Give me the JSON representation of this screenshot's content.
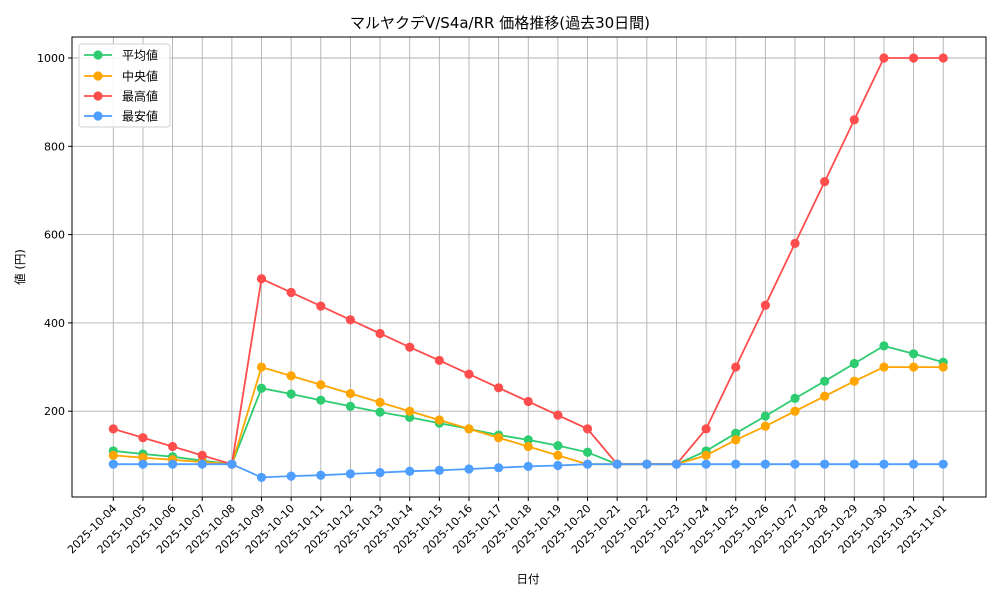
{
  "chart_data": {
    "type": "line",
    "title": "マルヤクデV/S4a/RR 価格推移(過去30日間)",
    "xlabel": "日付",
    "ylabel": "値 (円)",
    "ylim": [
      0,
      1045
    ],
    "yticks": [
      200,
      400,
      600,
      800,
      1000
    ],
    "grid": true,
    "legend_position": "upper left",
    "categories": [
      "2025-10-04",
      "2025-10-05",
      "2025-10-06",
      "2025-10-07",
      "2025-10-08",
      "2025-10-09",
      "2025-10-10",
      "2025-10-11",
      "2025-10-12",
      "2025-10-13",
      "2025-10-14",
      "2025-10-15",
      "2025-10-16",
      "2025-10-17",
      "2025-10-18",
      "2025-10-19",
      "2025-10-20",
      "2025-10-21",
      "2025-10-22",
      "2025-10-23",
      "2025-10-24",
      "2025-10-25",
      "2025-10-26",
      "2025-10-27",
      "2025-10-28",
      "2025-10-29",
      "2025-10-30",
      "2025-10-31",
      "2025-11-01"
    ],
    "series": [
      {
        "name": "平均値",
        "color": "#2ecc71",
        "values": [
          110,
          103,
          97,
          88,
          80,
          252,
          239,
          225,
          211,
          198,
          186,
          173,
          160,
          146,
          135,
          122,
          107,
          80,
          80,
          80,
          110,
          150,
          189,
          229,
          268,
          308,
          348,
          330,
          311
        ]
      },
      {
        "name": "中央値",
        "color": "#ffa500",
        "values": [
          100,
          95,
          90,
          85,
          80,
          300,
          280,
          260,
          240,
          220,
          200,
          180,
          160,
          140,
          120,
          100,
          80,
          80,
          80,
          80,
          100,
          135,
          166,
          200,
          234,
          268,
          300,
          300,
          300
        ]
      },
      {
        "name": "最高値",
        "color": "#ff4d4d",
        "values": [
          160,
          140,
          120,
          100,
          80,
          500,
          469,
          438,
          407,
          376,
          345,
          315,
          284,
          253,
          222,
          191,
          160,
          80,
          80,
          80,
          160,
          300,
          440,
          580,
          720,
          860,
          1000,
          1000,
          1000
        ]
      },
      {
        "name": "最安値",
        "color": "#4d9eff",
        "values": [
          80,
          80,
          80,
          80,
          80,
          50,
          53,
          55,
          58,
          61,
          64,
          66,
          69,
          72,
          75,
          77,
          80,
          80,
          80,
          80,
          80,
          80,
          80,
          80,
          80,
          80,
          80,
          80,
          80
        ]
      }
    ]
  },
  "legend": {
    "items": [
      "平均値",
      "中央値",
      "最高値",
      "最安値"
    ]
  }
}
